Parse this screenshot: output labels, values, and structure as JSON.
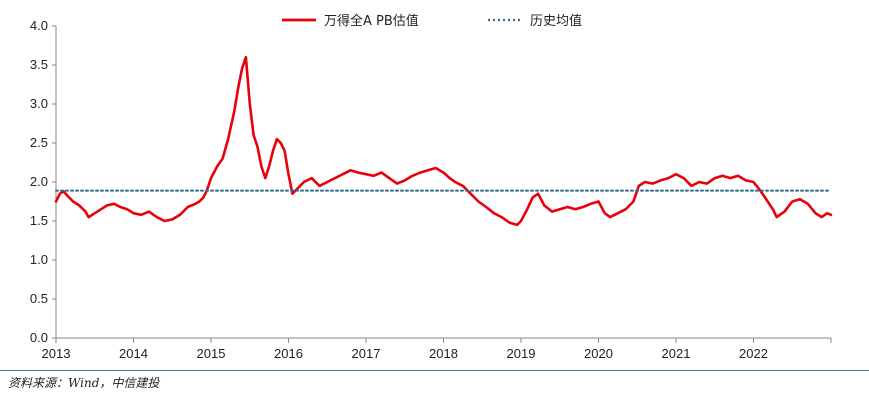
{
  "chart_data": {
    "type": "line",
    "title": "",
    "xlabel": "",
    "ylabel": "",
    "ylim": [
      0,
      4.0
    ],
    "yticks": [
      "0.0",
      "0.5",
      "1.0",
      "1.5",
      "2.0",
      "2.5",
      "3.0",
      "3.5",
      "4.0"
    ],
    "xlim": [
      2013,
      2023
    ],
    "xticks": [
      "2013",
      "2014",
      "2015",
      "2016",
      "2017",
      "2018",
      "2019",
      "2020",
      "2021",
      "2022"
    ],
    "grid": false,
    "legend_position": "top-center",
    "series": [
      {
        "name": "万得全A PB估值",
        "color": "#e8000b",
        "style": "solid",
        "points": [
          [
            2013.0,
            1.75
          ],
          [
            2013.05,
            1.85
          ],
          [
            2013.1,
            1.88
          ],
          [
            2013.15,
            1.82
          ],
          [
            2013.22,
            1.75
          ],
          [
            2013.3,
            1.7
          ],
          [
            2013.38,
            1.62
          ],
          [
            2013.42,
            1.55
          ],
          [
            2013.5,
            1.6
          ],
          [
            2013.58,
            1.65
          ],
          [
            2013.66,
            1.7
          ],
          [
            2013.75,
            1.72
          ],
          [
            2013.83,
            1.68
          ],
          [
            2013.92,
            1.65
          ],
          [
            2014.0,
            1.6
          ],
          [
            2014.1,
            1.58
          ],
          [
            2014.2,
            1.62
          ],
          [
            2014.3,
            1.55
          ],
          [
            2014.4,
            1.5
          ],
          [
            2014.5,
            1.52
          ],
          [
            2014.6,
            1.58
          ],
          [
            2014.7,
            1.68
          ],
          [
            2014.8,
            1.72
          ],
          [
            2014.85,
            1.75
          ],
          [
            2014.9,
            1.8
          ],
          [
            2014.95,
            1.9
          ],
          [
            2015.0,
            2.05
          ],
          [
            2015.08,
            2.2
          ],
          [
            2015.15,
            2.3
          ],
          [
            2015.22,
            2.55
          ],
          [
            2015.3,
            2.9
          ],
          [
            2015.35,
            3.2
          ],
          [
            2015.4,
            3.45
          ],
          [
            2015.45,
            3.6
          ],
          [
            2015.5,
            3.0
          ],
          [
            2015.55,
            2.6
          ],
          [
            2015.6,
            2.45
          ],
          [
            2015.65,
            2.2
          ],
          [
            2015.7,
            2.05
          ],
          [
            2015.75,
            2.2
          ],
          [
            2015.8,
            2.4
          ],
          [
            2015.85,
            2.55
          ],
          [
            2015.9,
            2.5
          ],
          [
            2015.95,
            2.4
          ],
          [
            2016.0,
            2.1
          ],
          [
            2016.05,
            1.85
          ],
          [
            2016.1,
            1.9
          ],
          [
            2016.2,
            2.0
          ],
          [
            2016.3,
            2.05
          ],
          [
            2016.4,
            1.95
          ],
          [
            2016.5,
            2.0
          ],
          [
            2016.6,
            2.05
          ],
          [
            2016.7,
            2.1
          ],
          [
            2016.8,
            2.15
          ],
          [
            2016.9,
            2.12
          ],
          [
            2017.0,
            2.1
          ],
          [
            2017.1,
            2.08
          ],
          [
            2017.2,
            2.12
          ],
          [
            2017.3,
            2.05
          ],
          [
            2017.4,
            1.98
          ],
          [
            2017.5,
            2.02
          ],
          [
            2017.6,
            2.08
          ],
          [
            2017.7,
            2.12
          ],
          [
            2017.8,
            2.15
          ],
          [
            2017.9,
            2.18
          ],
          [
            2018.0,
            2.12
          ],
          [
            2018.08,
            2.05
          ],
          [
            2018.15,
            2.0
          ],
          [
            2018.25,
            1.95
          ],
          [
            2018.35,
            1.85
          ],
          [
            2018.45,
            1.75
          ],
          [
            2018.55,
            1.68
          ],
          [
            2018.65,
            1.6
          ],
          [
            2018.75,
            1.55
          ],
          [
            2018.85,
            1.48
          ],
          [
            2018.95,
            1.45
          ],
          [
            2019.0,
            1.5
          ],
          [
            2019.08,
            1.65
          ],
          [
            2019.15,
            1.8
          ],
          [
            2019.22,
            1.85
          ],
          [
            2019.3,
            1.7
          ],
          [
            2019.4,
            1.62
          ],
          [
            2019.5,
            1.65
          ],
          [
            2019.6,
            1.68
          ],
          [
            2019.7,
            1.65
          ],
          [
            2019.8,
            1.68
          ],
          [
            2019.9,
            1.72
          ],
          [
            2020.0,
            1.75
          ],
          [
            2020.08,
            1.6
          ],
          [
            2020.15,
            1.55
          ],
          [
            2020.25,
            1.6
          ],
          [
            2020.35,
            1.65
          ],
          [
            2020.45,
            1.75
          ],
          [
            2020.52,
            1.95
          ],
          [
            2020.6,
            2.0
          ],
          [
            2020.7,
            1.98
          ],
          [
            2020.8,
            2.02
          ],
          [
            2020.9,
            2.05
          ],
          [
            2021.0,
            2.1
          ],
          [
            2021.1,
            2.05
          ],
          [
            2021.2,
            1.95
          ],
          [
            2021.3,
            2.0
          ],
          [
            2021.4,
            1.98
          ],
          [
            2021.5,
            2.05
          ],
          [
            2021.6,
            2.08
          ],
          [
            2021.7,
            2.05
          ],
          [
            2021.8,
            2.08
          ],
          [
            2021.9,
            2.02
          ],
          [
            2022.0,
            2.0
          ],
          [
            2022.08,
            1.9
          ],
          [
            2022.15,
            1.8
          ],
          [
            2022.25,
            1.65
          ],
          [
            2022.3,
            1.55
          ],
          [
            2022.4,
            1.62
          ],
          [
            2022.5,
            1.75
          ],
          [
            2022.6,
            1.78
          ],
          [
            2022.7,
            1.72
          ],
          [
            2022.8,
            1.6
          ],
          [
            2022.88,
            1.55
          ],
          [
            2022.95,
            1.6
          ],
          [
            2023.0,
            1.58
          ]
        ]
      },
      {
        "name": "历史均值",
        "color": "#2e6d8e",
        "style": "dotted",
        "points": [
          [
            2013.0,
            1.89
          ],
          [
            2023.0,
            1.89
          ]
        ]
      }
    ]
  },
  "source_note": "资料来源：Wind，中信建投"
}
